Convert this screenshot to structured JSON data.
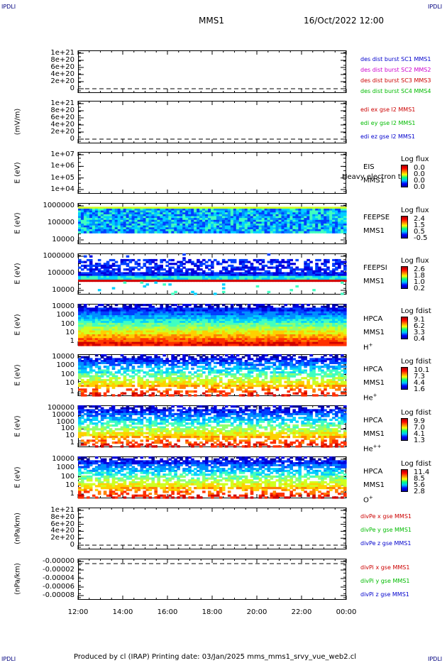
{
  "corners": {
    "tl": "IPDLI",
    "tr": "IPDLI",
    "bl": "IPDLI",
    "br": "IPDLI"
  },
  "header": {
    "spacecraft": "MMS1",
    "datetime": "16/Oct/2022 12:00"
  },
  "footer": {
    "text": "Produced by cl (IRAP)   Printing date: 03/Jan/2025   mms_mms1_srvy_vue_web2.cl"
  },
  "x_ticks": [
    "12:00",
    "14:00",
    "16:00",
    "18:00",
    "20:00",
    "22:00",
    "00:00"
  ],
  "chart_data": [
    {
      "type": "line",
      "ylabel": "",
      "yticks": [
        "1e+21",
        "8e+20",
        "6e+20",
        "4e+20",
        "2e+20",
        "0"
      ],
      "legend": [
        {
          "text": "des dist burst SC1 MMS1",
          "color": "#0000cc"
        },
        {
          "text": "des dist burst SC2 MMS2",
          "color": "#cc00cc"
        },
        {
          "text": "des dist burst SC3 MMS3",
          "color": "#cc0000"
        },
        {
          "text": "des dist burst SC4 MMS4",
          "color": "#00bb00"
        }
      ],
      "reference_line": "dashed y=0"
    },
    {
      "type": "line",
      "ylabel": "(mV/m)",
      "yticks": [
        "1e+21",
        "8e+20",
        "6e+20",
        "4e+20",
        "2e+20",
        "0"
      ],
      "legend": [
        {
          "text": "edi ex gse l2 MMS1",
          "color": "#cc0000"
        },
        {
          "text": "edi ey gse l2 MMS1",
          "color": "#00bb00"
        },
        {
          "text": "edi ez gse l2 MMS1",
          "color": "#0000cc"
        }
      ],
      "reference_line": "dashed y=0"
    },
    {
      "type": "heatmap",
      "ylabel": "E (eV)",
      "yticks": [
        "1e+07",
        "1e+06",
        "1e+05",
        "1e+04"
      ],
      "side_labels": [
        "EIS",
        "MMS1"
      ],
      "overlay_text": "Heavy electron to",
      "cbar_title": "Log flux",
      "cbar_ticks": [
        "0.0",
        "0.0",
        "0.0",
        "0.0"
      ]
    },
    {
      "type": "heatmap",
      "ylabel": "E (eV)",
      "yticks": [
        "1000000",
        "100000",
        "10000"
      ],
      "side_labels": [
        "FEEPSE",
        "MMS1"
      ],
      "cbar_title": "Log flux",
      "cbar_ticks": [
        "2.4",
        "1.5",
        "0.5",
        "-0.5"
      ]
    },
    {
      "type": "heatmap",
      "ylabel": "E (eV)",
      "yticks": [
        "1000000",
        "100000",
        "10000"
      ],
      "side_labels": [
        "FEEPSI",
        "MMS1"
      ],
      "cbar_title": "Log flux",
      "cbar_ticks": [
        "2.6",
        "1.8",
        "1.0",
        "0.2"
      ]
    },
    {
      "type": "heatmap",
      "ylabel": "E (eV)",
      "yticks": [
        "10000",
        "1000",
        "100",
        "10",
        "1"
      ],
      "side_labels": [
        "HPCA",
        "MMS1",
        "H"
      ],
      "species_sup": "+",
      "cbar_title": "Log fdist",
      "cbar_ticks": [
        "9.1",
        "6.2",
        "3.3",
        "0.4"
      ]
    },
    {
      "type": "heatmap",
      "ylabel": "E (eV)",
      "yticks": [
        "10000",
        "1000",
        "100",
        "10",
        "1"
      ],
      "side_labels": [
        "HPCA",
        "MMS1",
        "He"
      ],
      "species_sup": "+",
      "cbar_title": "Log fdist",
      "cbar_ticks": [
        "10.1",
        "7.3",
        "4.4",
        "1.6"
      ]
    },
    {
      "type": "heatmap",
      "ylabel": "E (eV)",
      "yticks": [
        "100000",
        "10000",
        "1000",
        "100",
        "10",
        "1"
      ],
      "side_labels": [
        "HPCA",
        "MMS1",
        "He"
      ],
      "species_sup": "++",
      "cbar_title": "Log fdist",
      "cbar_ticks": [
        "9.9",
        "7.0",
        "4.1",
        "1.3"
      ]
    },
    {
      "type": "heatmap",
      "ylabel": "E (eV)",
      "yticks": [
        "10000",
        "1000",
        "100",
        "10",
        "1"
      ],
      "side_labels": [
        "HPCA",
        "MMS1",
        "O"
      ],
      "species_sup": "+",
      "cbar_title": "Log fdist",
      "cbar_ticks": [
        "11.4",
        "8.5",
        "5.6",
        "2.8"
      ]
    },
    {
      "type": "line",
      "ylabel": "(nPa/km)",
      "yticks": [
        "1e+21",
        "8e+20",
        "6e+20",
        "4e+20",
        "2e+20",
        "0"
      ],
      "legend": [
        {
          "text": "divPe x gse MMS1",
          "color": "#cc0000"
        },
        {
          "text": "divPe y gse MMS1",
          "color": "#00bb00"
        },
        {
          "text": "divPe z gse MMS1",
          "color": "#0000cc"
        }
      ],
      "reference_line": "dashed y=0"
    },
    {
      "type": "line",
      "ylabel": "(nPa/km)",
      "yticks": [
        "-0.00000",
        "-0.00002",
        "-0.00004",
        "-0.00006",
        "-0.00008"
      ],
      "legend": [
        {
          "text": "divPi x gse MMS1",
          "color": "#cc0000"
        },
        {
          "text": "divPi y gse MMS1",
          "color": "#00bb00"
        },
        {
          "text": "divPi z gse MMS1",
          "color": "#0000cc"
        }
      ],
      "reference_line": "dashed y=0"
    }
  ]
}
